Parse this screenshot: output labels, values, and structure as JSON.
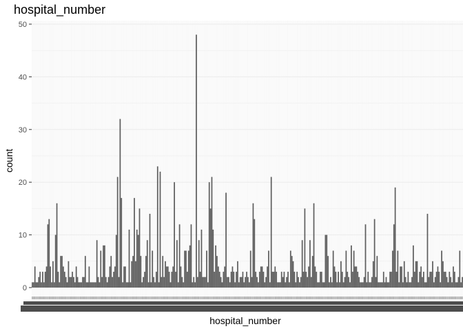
{
  "chart_data": {
    "type": "bar",
    "title": "hospital_number",
    "xlabel": "hospital_number",
    "ylabel": "count",
    "ylim": [
      0,
      50
    ],
    "yticks": [
      0,
      10,
      20,
      30,
      40,
      50
    ],
    "x_tick_labels": "illegible (overlapping hospital number labels)",
    "bar_color": "#595959",
    "panel_background": "#ffffff",
    "grid": true,
    "grid_color": "#ebebeb",
    "legend": "none",
    "values": [
      1,
      1,
      4,
      1,
      1,
      2,
      3,
      1,
      3,
      1,
      3,
      4,
      12,
      13,
      4,
      1,
      5,
      1,
      10,
      16,
      3,
      1,
      6,
      6,
      4,
      3,
      2,
      1,
      5,
      2,
      2,
      3,
      2,
      1,
      4,
      2,
      1,
      1,
      1,
      2,
      2,
      6,
      1,
      1,
      4,
      1,
      1,
      1,
      1,
      1,
      9,
      2,
      1,
      7,
      2,
      8,
      8,
      2,
      1,
      2,
      4,
      6,
      2,
      3,
      4,
      10,
      21,
      2,
      32,
      17,
      1,
      4,
      4,
      1,
      1,
      11,
      1,
      5,
      6,
      17,
      5,
      11,
      10,
      15,
      6,
      1,
      2,
      3,
      6,
      9,
      1,
      14,
      1,
      7,
      2,
      1,
      3,
      23,
      1,
      22,
      2,
      6,
      2,
      5,
      4,
      4,
      3,
      1,
      3,
      4,
      20,
      3,
      9,
      1,
      12,
      4,
      2,
      1,
      7,
      7,
      3,
      7,
      8,
      12,
      1,
      2,
      1,
      48,
      2,
      9,
      3,
      11,
      2,
      2,
      2,
      7,
      1,
      20,
      15,
      21,
      11,
      3,
      8,
      6,
      4,
      3,
      2,
      1,
      3,
      4,
      18,
      2,
      2,
      1,
      3,
      4,
      3,
      1,
      3,
      5,
      1,
      2,
      2,
      3,
      1,
      2,
      3,
      2,
      1,
      7,
      2,
      16,
      13,
      3,
      2,
      1,
      3,
      4,
      4,
      3,
      1,
      2,
      4,
      7,
      1,
      21,
      3,
      3,
      4,
      3,
      1,
      1,
      1,
      3,
      2,
      3,
      1,
      2,
      3,
      1,
      7,
      6,
      5,
      3,
      1,
      3,
      2,
      1,
      2,
      9,
      3,
      15,
      3,
      2,
      4,
      9,
      2,
      6,
      16,
      4,
      3,
      1,
      1,
      3,
      3,
      1,
      1,
      10,
      10,
      6,
      1,
      2,
      1,
      7,
      4,
      3,
      1,
      3,
      1,
      5,
      3,
      1,
      2,
      7,
      3,
      2,
      1,
      8,
      3,
      7,
      4,
      4,
      3,
      2,
      1,
      1,
      1,
      2,
      12,
      1,
      3,
      1,
      1,
      2,
      5,
      13,
      2,
      6,
      1,
      1,
      1,
      1,
      3,
      1,
      2,
      1,
      1,
      3,
      3,
      7,
      12,
      19,
      3,
      7,
      1,
      4,
      4,
      1,
      5,
      2,
      1,
      3,
      1,
      1,
      2,
      8,
      3,
      5,
      5,
      1,
      3,
      4,
      2,
      3,
      1,
      1,
      14,
      2,
      3,
      3,
      5,
      1,
      2,
      3,
      4,
      3,
      1,
      7,
      5,
      3,
      3,
      2,
      1,
      3,
      2,
      1,
      4,
      3,
      1,
      1,
      2,
      7,
      1,
      2
    ]
  }
}
